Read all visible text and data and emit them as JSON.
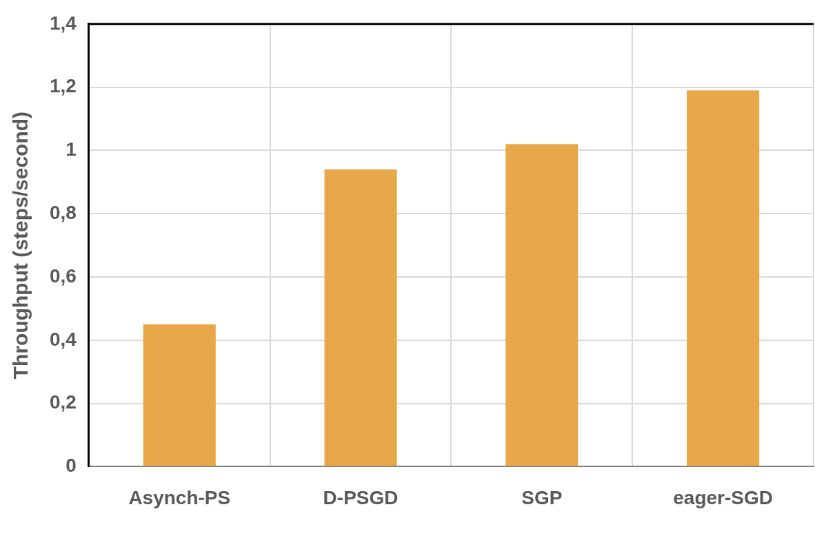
{
  "chart_data": {
    "type": "bar",
    "ylabel": "Throughput (steps/second)",
    "categories": [
      "Asynch-PS",
      "D-PSGD",
      "SGP",
      "eager-SGD"
    ],
    "values": [
      0.45,
      0.94,
      1.02,
      1.19
    ],
    "color": "#e8a84a",
    "ylim": [
      0,
      1.4
    ],
    "yticks": [
      {
        "value": 0,
        "label": "0"
      },
      {
        "value": 0.2,
        "label": "0,2"
      },
      {
        "value": 0.4,
        "label": "0,4"
      },
      {
        "value": 0.6,
        "label": "0,6"
      },
      {
        "value": 0.8,
        "label": "0,8"
      },
      {
        "value": 1,
        "label": "1"
      },
      {
        "value": 1.2,
        "label": "1,2"
      },
      {
        "value": 1.4,
        "label": "1,4"
      }
    ],
    "grid": true,
    "legend": false
  }
}
